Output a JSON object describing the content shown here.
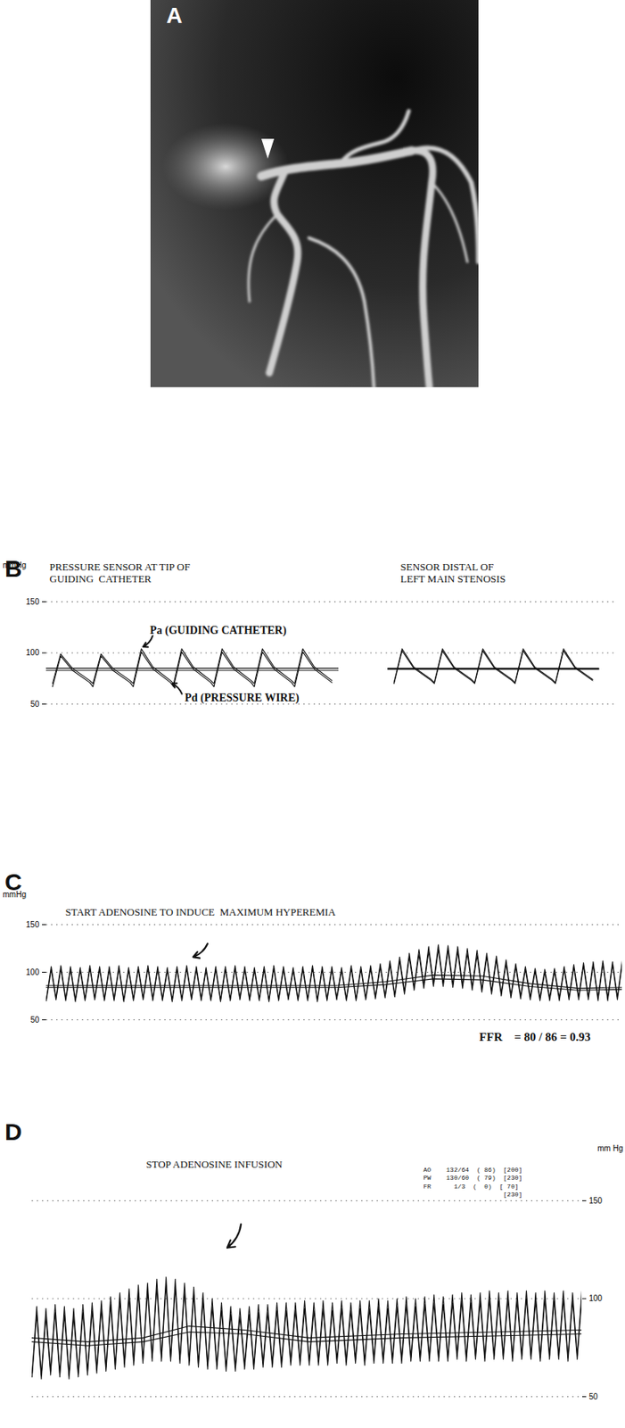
{
  "image": {
    "panel": "A"
  },
  "chart_data": [
    {
      "panel": "B",
      "type": "line",
      "color": "#111111",
      "titles": [
        "PRESSURE SENSOR AT TIP OF\nGUIDING  CATHETER",
        "SENSOR DISTAL OF\nLEFT MAIN STENOSIS"
      ],
      "ylabel": "mmHg",
      "ylim": [
        50,
        150
      ],
      "yticks": [
        50,
        100,
        150
      ],
      "xlim": [
        0,
        92
      ],
      "grid": true,
      "tick_labels": "y",
      "x": [
        1,
        2.3,
        4.2,
        7,
        7.5,
        8.8,
        10.7,
        13.5,
        14,
        15.3,
        17.2,
        20,
        20.5,
        21.8,
        23.7,
        26.5,
        27,
        28.3,
        30.2,
        33,
        33.5,
        34.8,
        36.7,
        39.5,
        40,
        41.3,
        43.2,
        46,
        50,
        56,
        57.3,
        59.2,
        62,
        62.5,
        63.8,
        65.7,
        68.5,
        69,
        70.3,
        72.2,
        75,
        75.5,
        76.8,
        78.7,
        81.5,
        82,
        83.3,
        85.2,
        88
      ],
      "series": [
        {
          "name": "Pa (GUIDING CATHETER)",
          "values": [
            70,
            99,
            85,
            73,
            70,
            99,
            85,
            73,
            70,
            104,
            86,
            73,
            70,
            104,
            86,
            73,
            70,
            104,
            86,
            73,
            70,
            104,
            86,
            73,
            70,
            104,
            86,
            73,
            null,
            71,
            104,
            86,
            74,
            71,
            104,
            86,
            74,
            71,
            104,
            86,
            74,
            71,
            104,
            86,
            74,
            71,
            104,
            86,
            74
          ]
        },
        {
          "name": "Pd (PRESSURE WIRE)",
          "values": [
            67,
            97,
            83,
            71,
            67,
            97,
            83,
            71,
            67,
            101,
            84,
            71,
            67,
            101,
            84,
            71,
            67,
            101,
            84,
            71,
            67,
            101,
            84,
            71,
            67,
            101,
            84,
            71,
            null,
            70,
            102,
            85,
            73,
            70,
            102,
            85,
            73,
            70,
            102,
            85,
            73,
            70,
            102,
            85,
            73,
            70,
            102,
            85,
            73
          ]
        },
        {
          "x": [
            0,
            47,
            null,
            55,
            89
          ],
          "values": [
            85,
            85,
            null,
            85,
            85
          ]
        },
        {
          "x": [
            0,
            47,
            null,
            55,
            89
          ],
          "values": [
            83,
            83,
            null,
            84,
            84
          ]
        }
      ]
    },
    {
      "panel": "C",
      "type": "line",
      "color": "#111111",
      "title": "START ADENOSINE TO INDUCE  MAXIMUM HYPEREMIA",
      "annotations": [
        "FFR    = 80 / 86 = 0.93"
      ],
      "ylabel": "mmHg",
      "ylim": [
        50,
        150
      ],
      "yticks": [
        50,
        100,
        150
      ],
      "xlim": [
        0,
        119
      ],
      "grid": true,
      "tick_labels": "y",
      "x": [
        0,
        1,
        2,
        3,
        4,
        5,
        6,
        7,
        8,
        9,
        10,
        11,
        12,
        13,
        14,
        15,
        16,
        17,
        18,
        19,
        20,
        21,
        22,
        23,
        24,
        25,
        26,
        27,
        28,
        29,
        30,
        31,
        32,
        33,
        34,
        35,
        36,
        37,
        38,
        39,
        40,
        41,
        42,
        43,
        44,
        45,
        46,
        47,
        48,
        49,
        50,
        51,
        52,
        53,
        54,
        55,
        56,
        57,
        58,
        59,
        60,
        61,
        62,
        63,
        64,
        65,
        66,
        67,
        68,
        69,
        70,
        71,
        72,
        73,
        74,
        75,
        76,
        77,
        78,
        79,
        80,
        81,
        82,
        83,
        84,
        85,
        86,
        87,
        88,
        89,
        90,
        91,
        92,
        93,
        94,
        95,
        96,
        97,
        98,
        99,
        100,
        101,
        102,
        103,
        104,
        105,
        106,
        107,
        108,
        109,
        110,
        111,
        112,
        113,
        114,
        115,
        116,
        117,
        118,
        119
      ],
      "series": [
        {
          "values": [
            72,
            106,
            73,
            107,
            72,
            106,
            71,
            105,
            72,
            107,
            73,
            106,
            72,
            106,
            72,
            107,
            71,
            105,
            72,
            106,
            73,
            107,
            72,
            106,
            72,
            105,
            71,
            106,
            72,
            107,
            73,
            106,
            72,
            105,
            72,
            106,
            71,
            106,
            72,
            107,
            73,
            106,
            72,
            105,
            72,
            106,
            71,
            107,
            72,
            106,
            73,
            105,
            72,
            106,
            72,
            107,
            71,
            106,
            72,
            106,
            73,
            105,
            72,
            107,
            72,
            106,
            73,
            107,
            74,
            109,
            75,
            112,
            76,
            116,
            80,
            120,
            84,
            124,
            86,
            127,
            88,
            129,
            88,
            128,
            87,
            127,
            86,
            125,
            84,
            123,
            82,
            120,
            80,
            117,
            78,
            113,
            76,
            109,
            75,
            106,
            74,
            104,
            73,
            103,
            73,
            104,
            73,
            106,
            74,
            108,
            74,
            110,
            74,
            111,
            73,
            112,
            73,
            111,
            74,
            112
          ]
        },
        {
          "values": [
            70,
            103,
            71,
            104,
            70,
            103,
            69,
            102,
            70,
            104,
            71,
            103,
            70,
            103,
            70,
            104,
            69,
            102,
            70,
            103,
            71,
            104,
            70,
            103,
            70,
            102,
            69,
            103,
            70,
            104,
            71,
            103,
            70,
            102,
            70,
            103,
            69,
            103,
            70,
            104,
            71,
            103,
            70,
            102,
            70,
            103,
            69,
            104,
            70,
            103,
            71,
            102,
            70,
            103,
            70,
            104,
            69,
            103,
            70,
            103,
            71,
            102,
            70,
            104,
            70,
            103,
            71,
            104,
            72,
            106,
            73,
            108,
            74,
            112,
            77,
            116,
            81,
            119,
            83,
            122,
            85,
            124,
            85,
            123,
            84,
            122,
            83,
            120,
            81,
            118,
            79,
            116,
            77,
            113,
            75,
            109,
            73,
            106,
            72,
            103,
            71,
            101,
            70,
            100,
            70,
            101,
            70,
            103,
            71,
            105,
            71,
            107,
            71,
            108,
            70,
            109,
            70,
            108,
            71,
            109
          ]
        },
        {
          "x": [
            0,
            60,
            70,
            80,
            90,
            100,
            110,
            119
          ],
          "values": [
            86,
            86,
            90,
            97,
            96,
            88,
            83,
            84
          ]
        },
        {
          "x": [
            0,
            60,
            70,
            80,
            90,
            100,
            110,
            119
          ],
          "values": [
            84,
            84,
            87,
            93,
            92,
            85,
            81,
            82
          ]
        }
      ]
    },
    {
      "panel": "D",
      "type": "line",
      "color": "#111111",
      "title": "STOP ADENOSINE INFUSION",
      "annotations": [
        "AO    132/64  ( 86)  [200]",
        "PW    130/60  ( 79)  [230]",
        "FR      1/3  (  0)  [ 70]",
        "                     [230]"
      ],
      "ylabel": "mm Hg",
      "ylim": [
        50,
        150
      ],
      "yticks": [
        50,
        100,
        150
      ],
      "xlim": [
        0,
        119
      ],
      "grid": true,
      "tick_labels": "y",
      "x": [
        0,
        1,
        2,
        3,
        4,
        5,
        6,
        7,
        8,
        9,
        10,
        11,
        12,
        13,
        14,
        15,
        16,
        17,
        18,
        19,
        20,
        21,
        22,
        23,
        24,
        25,
        26,
        27,
        28,
        29,
        30,
        31,
        32,
        33,
        34,
        35,
        36,
        37,
        38,
        39,
        40,
        41,
        42,
        43,
        44,
        45,
        46,
        47,
        48,
        49,
        50,
        51,
        52,
        53,
        54,
        55,
        56,
        57,
        58,
        59,
        60,
        61,
        62,
        63,
        64,
        65,
        66,
        67,
        68,
        69,
        70,
        71,
        72,
        73,
        74,
        75,
        76,
        77,
        78,
        79,
        80,
        81,
        82,
        83,
        84,
        85,
        86,
        87,
        88,
        89,
        90,
        91,
        92,
        93,
        94,
        95,
        96,
        97,
        98,
        99,
        100,
        101,
        102,
        103,
        104,
        105,
        106,
        107,
        108,
        109,
        110,
        111,
        112,
        113,
        114,
        115,
        116,
        117,
        118,
        119
      ],
      "series": [
        {
          "values": [
            62,
            96,
            61,
            95,
            63,
            97,
            62,
            96,
            61,
            95,
            62,
            97,
            63,
            98,
            64,
            99,
            65,
            101,
            66,
            103,
            67,
            105,
            68,
            107,
            69,
            108,
            70,
            110,
            70,
            111,
            70,
            110,
            69,
            108,
            68,
            106,
            67,
            103,
            66,
            100,
            66,
            98,
            65,
            96,
            65,
            95,
            66,
            96,
            66,
            97,
            67,
            97,
            67,
            98,
            67,
            98,
            68,
            98,
            68,
            99,
            68,
            98,
            68,
            99,
            68,
            98,
            69,
            99,
            68,
            98,
            69,
            99,
            68,
            99,
            69,
            100,
            69,
            99,
            69,
            100,
            69,
            101,
            70,
            100,
            70,
            101,
            70,
            102,
            70,
            101,
            70,
            102,
            71,
            103,
            70,
            102,
            71,
            103,
            70,
            104,
            71,
            103,
            71,
            104,
            70,
            103,
            71,
            104,
            71,
            103,
            70,
            104,
            71,
            103,
            71,
            104,
            70,
            103,
            71,
            104
          ]
        },
        {
          "values": [
            60,
            92,
            59,
            91,
            61,
            93,
            60,
            92,
            59,
            91,
            60,
            93,
            61,
            94,
            62,
            95,
            63,
            97,
            64,
            99,
            65,
            101,
            66,
            103,
            67,
            104,
            68,
            106,
            68,
            107,
            68,
            106,
            67,
            104,
            66,
            102,
            65,
            99,
            64,
            96,
            64,
            94,
            63,
            92,
            63,
            91,
            64,
            92,
            64,
            93,
            65,
            93,
            65,
            94,
            65,
            94,
            66,
            94,
            66,
            95,
            66,
            94,
            66,
            95,
            66,
            94,
            67,
            95,
            66,
            94,
            67,
            95,
            66,
            95,
            67,
            96,
            67,
            95,
            67,
            96,
            67,
            97,
            68,
            96,
            68,
            97,
            68,
            98,
            68,
            97,
            68,
            98,
            69,
            99,
            68,
            98,
            69,
            99,
            68,
            100,
            69,
            99,
            69,
            100,
            68,
            99,
            69,
            100,
            69,
            99,
            68,
            100,
            69,
            99,
            69,
            100,
            68,
            99,
            69,
            100
          ]
        },
        {
          "x": [
            0,
            12,
            24,
            34,
            46,
            60,
            80,
            100,
            119
          ],
          "values": [
            80,
            78,
            80,
            86,
            84,
            80,
            82,
            83,
            84
          ]
        },
        {
          "x": [
            0,
            12,
            24,
            34,
            46,
            60,
            80,
            100,
            119
          ],
          "values": [
            78,
            76,
            78,
            83,
            82,
            78,
            80,
            81,
            82
          ]
        }
      ]
    }
  ]
}
